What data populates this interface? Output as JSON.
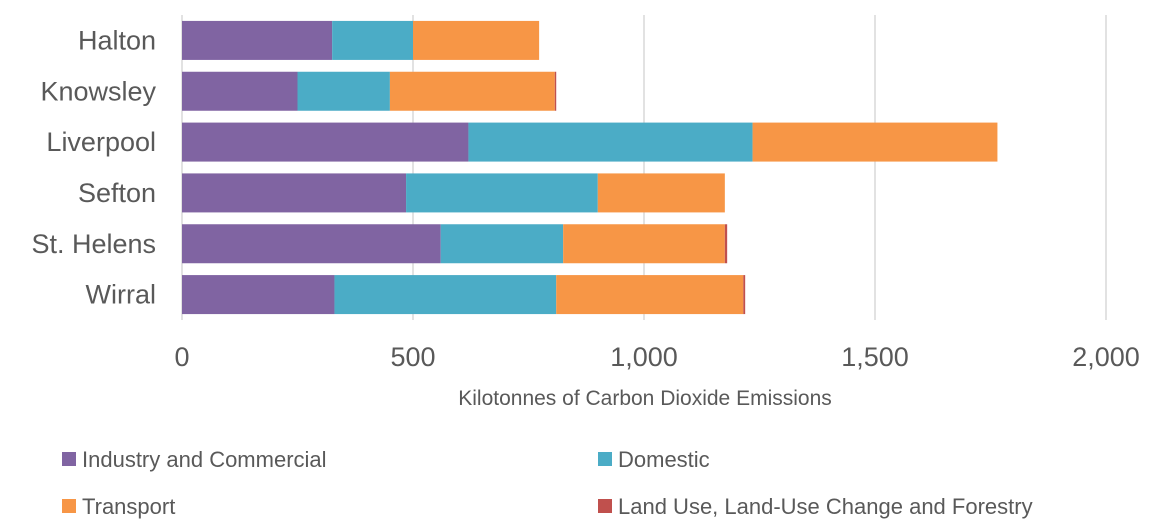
{
  "chart_data": {
    "type": "bar",
    "orientation": "horizontal",
    "stacked": true,
    "categories": [
      "Halton",
      "Knowsley",
      "Liverpool",
      "Sefton",
      "St. Helens",
      "Wirral"
    ],
    "series": [
      {
        "name": "Industry and Commercial",
        "color": "#8064a2",
        "values": [
          325,
          250,
          620,
          485,
          560,
          330
        ]
      },
      {
        "name": "Domestic",
        "color": "#4bacc6",
        "values": [
          175,
          200,
          615,
          415,
          265,
          480
        ]
      },
      {
        "name": "Transport",
        "color": "#f79646",
        "values": [
          273,
          357,
          530,
          275,
          350,
          405
        ]
      },
      {
        "name": "Land Use, Land-Use Change and Forestry",
        "color": "#c0504d",
        "values": [
          0,
          3,
          0,
          0,
          5,
          4
        ]
      }
    ],
    "xlabel": "Kilotonnes of Carbon Dioxide  Emissions",
    "ylabel": "",
    "xlim": [
      0,
      2000
    ],
    "xticks": [
      0,
      500,
      1000,
      1500,
      2000
    ],
    "xtick_labels": [
      "0",
      "500",
      "1,000",
      "1,500",
      "2,000"
    ],
    "grid": true,
    "legend_position": "bottom"
  }
}
